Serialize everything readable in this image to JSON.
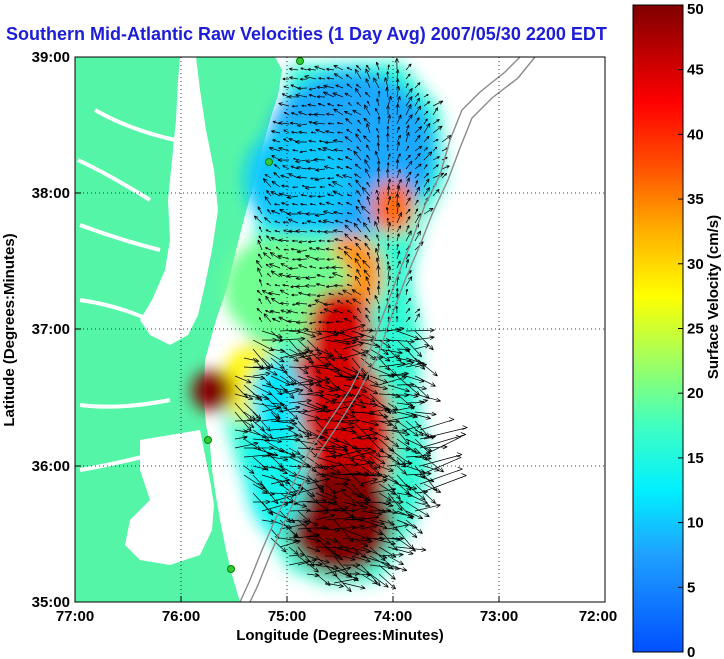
{
  "title": "Southern Mid-Atlantic Raw Velocities (1 Day Avg) 2007/05/30 2200 EDT",
  "map": {
    "x_label": "Longitude (Degrees:Minutes)",
    "y_label": "Latitude (Degrees:Minutes)",
    "x_ticks": [
      "77:00",
      "76:00",
      "75:00",
      "74:00",
      "73:00",
      "72:00"
    ],
    "y_ticks": [
      "39:00",
      "38:00",
      "37:00",
      "36:00",
      "35:00"
    ],
    "lon_range": [
      -77,
      -72
    ],
    "lat_range": [
      35,
      39
    ],
    "land_color": "#55f5a8",
    "grid": "dotted"
  },
  "colorbar": {
    "label": "Surface Velocity (cm/s)",
    "ticks": [
      "0",
      "5",
      "10",
      "15",
      "20",
      "25",
      "30",
      "35",
      "40",
      "45",
      "50"
    ],
    "range": [
      0,
      50
    ]
  },
  "velocity_blobs": [
    {
      "lon": -74.4,
      "lat": 38.3,
      "rx": 0.8,
      "ry": 0.6,
      "v": 8
    },
    {
      "lon": -74.9,
      "lat": 38.1,
      "rx": 0.5,
      "ry": 0.4,
      "v": 10
    },
    {
      "lon": -74.0,
      "lat": 37.9,
      "rx": 0.2,
      "ry": 0.2,
      "v": 36
    },
    {
      "lon": -74.4,
      "lat": 37.4,
      "rx": 0.3,
      "ry": 0.3,
      "v": 34
    },
    {
      "lon": -75.0,
      "lat": 37.3,
      "rx": 0.6,
      "ry": 0.4,
      "v": 20
    },
    {
      "lon": -74.5,
      "lat": 37.0,
      "rx": 0.3,
      "ry": 0.3,
      "v": 45
    },
    {
      "lon": -75.3,
      "lat": 36.6,
      "rx": 0.3,
      "ry": 0.3,
      "v": 28
    },
    {
      "lon": -75.7,
      "lat": 36.55,
      "rx": 0.2,
      "ry": 0.15,
      "v": 50
    },
    {
      "lon": -74.6,
      "lat": 36.2,
      "rx": 0.6,
      "ry": 0.7,
      "v": 45
    },
    {
      "lon": -74.5,
      "lat": 35.6,
      "rx": 0.5,
      "ry": 0.4,
      "v": 50
    },
    {
      "lon": -75.1,
      "lat": 36.0,
      "rx": 0.3,
      "ry": 0.5,
      "v": 14
    },
    {
      "lon": -75.1,
      "lat": 36.5,
      "rx": 0.25,
      "ry": 0.3,
      "v": 12
    }
  ]
}
